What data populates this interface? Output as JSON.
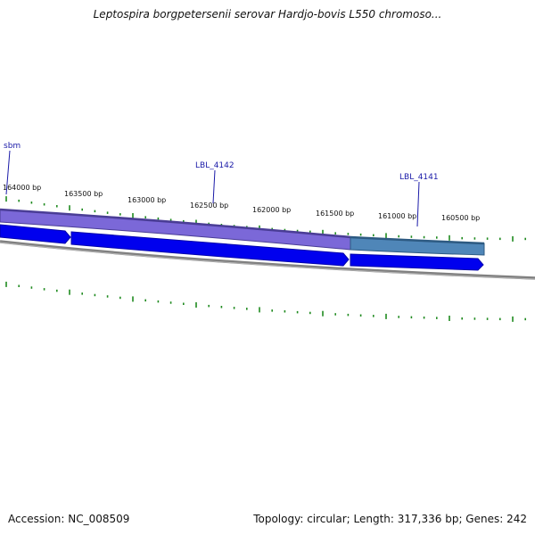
{
  "title": "Leptospira borgpetersenii serovar Hardjo-bovis L550 chromoso...",
  "footer": {
    "accession_label": "Accession:",
    "accession": "NC_008509",
    "topology_label": "Topology:",
    "topology": "circular",
    "length_label": "Length:",
    "length": "317,336 bp",
    "genes_label": "Genes:",
    "genes": "242"
  },
  "scale_labels": [
    "164000 bp",
    "163500 bp",
    "163000 bp",
    "162500 bp",
    "162000 bp",
    "161500 bp",
    "161000 bp",
    "160500 bp"
  ],
  "gene_labels": [
    "sbm",
    "LBL_4142",
    "LBL_4141"
  ],
  "colors": {
    "tick": "#1f8a1f",
    "feature_purple": "#7b68d8",
    "feature_purple_edge": "#4a3d96",
    "feature_teal": "#4f86b8",
    "feature_teal_edge": "#2d5a82",
    "arrow_blue": "#0000ee",
    "backbone": "#808080",
    "gene_label": "#1a1aa8"
  }
}
